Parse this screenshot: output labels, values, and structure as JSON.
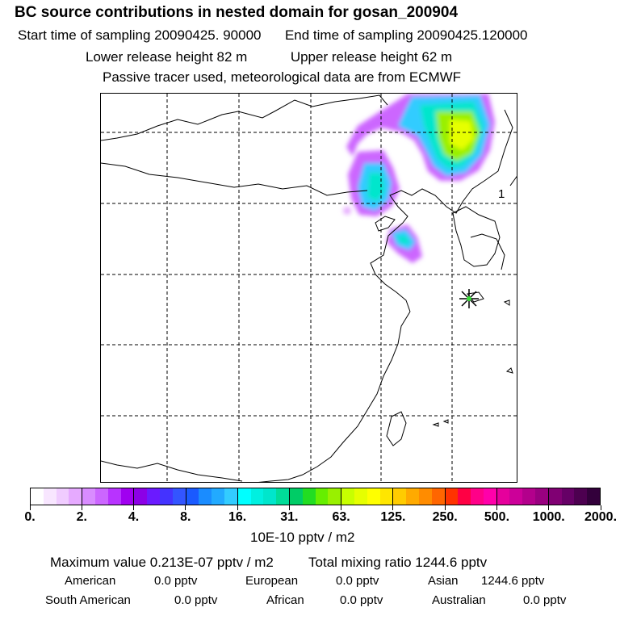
{
  "header": {
    "title": "BC  source contributions in nested domain for gosan_200904",
    "start_sampling": "Start time of sampling 20090425. 90000",
    "end_sampling": "End time of sampling 20090425.120000",
    "lower_release": "Lower release height   82 m",
    "upper_release": "Upper release height   62 m",
    "tracer_note": "Passive tracer used, meteorological data are from ECMWF"
  },
  "map": {
    "domain_label": "1",
    "receptor_marker": "star-marker",
    "land_outline_color": "#000000",
    "grid_line_style": "dashed"
  },
  "colorbar": {
    "units": "10E-10 pptv / m2",
    "tick_labels": [
      "0.",
      "2.",
      "4.",
      "8.",
      "16.",
      "31.",
      "63.",
      "125.",
      "250.",
      "500.",
      "1000.",
      "2000."
    ],
    "colors": [
      "#ffffff",
      "#f8e6ff",
      "#f0ccff",
      "#e6aaff",
      "#d98cff",
      "#cc66ff",
      "#b833ff",
      "#a000f0",
      "#8c00e6",
      "#6b1aff",
      "#4433ff",
      "#3355ff",
      "#1a5aff",
      "#1a8cff",
      "#22aaff",
      "#33ccff",
      "#00ffff",
      "#00f0e0",
      "#00e6cc",
      "#00dd99",
      "#00cc66",
      "#22dd22",
      "#66ee00",
      "#99f000",
      "#c8ff00",
      "#e6ff00",
      "#ffff00",
      "#ffe600",
      "#ffcc00",
      "#ffaa00",
      "#ff8c00",
      "#ff6600",
      "#ff3300",
      "#ff0044",
      "#ff0088",
      "#ff00aa",
      "#e6009c",
      "#cc0099",
      "#b3008c",
      "#990080",
      "#800073",
      "#660066",
      "#4d0050",
      "#33003b"
    ]
  },
  "stats": {
    "max_value": "Maximum value  0.213E-07 pptv / m2",
    "total_mixing": "Total mixing ratio     1244.6 pptv",
    "regions": [
      {
        "label": "American",
        "value": "0.0 pptv"
      },
      {
        "label": "European",
        "value": "0.0 pptv"
      },
      {
        "label": "Asian",
        "value": "1244.6 pptv"
      },
      {
        "label": "South American",
        "value": "0.0 pptv"
      },
      {
        "label": "African",
        "value": "0.0 pptv"
      },
      {
        "label": "Australian",
        "value": "0.0 pptv"
      }
    ]
  }
}
